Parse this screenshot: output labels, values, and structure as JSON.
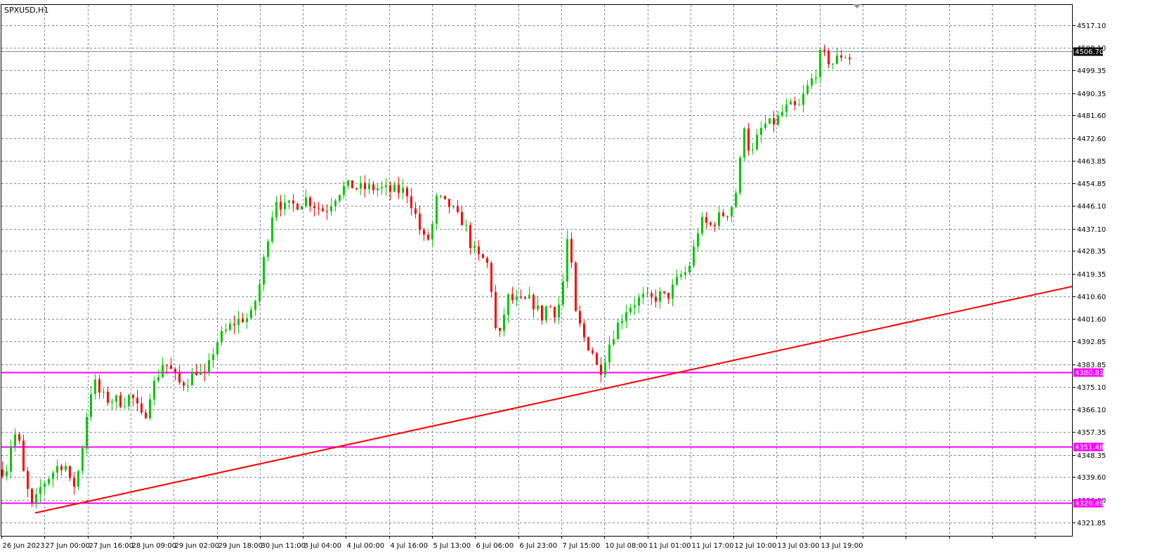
{
  "chart_data": {
    "type": "candlestick",
    "symbol_label": "SPXUSD,H1",
    "y_range": [
      4316.5,
      4525.0
    ],
    "y_ticks": [
      "4517.10",
      "4508.10",
      "4499.35",
      "4490.35",
      "4481.60",
      "4472.60",
      "4463.85",
      "4454.85",
      "4446.10",
      "4437.10",
      "4428.35",
      "4419.35",
      "4410.60",
      "4401.60",
      "4392.85",
      "4383.85",
      "4375.10",
      "4366.10",
      "4357.35",
      "4348.35",
      "4339.60",
      "4330.60",
      "4321.85"
    ],
    "x_ticks": [
      "26 Jun 2023",
      "27 Jun 00:00",
      "27 Jun 16:00",
      "28 Jun 09:00",
      "29 Jun 02:00",
      "29 Jun 18:00",
      "30 Jun 11:00",
      "3 Jul 04:00",
      "4 Jul 00:00",
      "4 Jul 16:00",
      "5 Jul 13:00",
      "6 Jul 06:00",
      "6 Jul 23:00",
      "7 Jul 15:00",
      "10 Jul 08:00",
      "11 Jul 01:00",
      "11 Jul 17:00",
      "12 Jul 10:00",
      "13 Jul 03:00",
      "13 Jul 19:00"
    ],
    "current_price": "4506.70",
    "horizontal_levels": [
      {
        "label": "4380.81",
        "value": 4380.81,
        "color": "#ff00ff"
      },
      {
        "label": "4351.48",
        "value": 4351.48,
        "color": "#ff00ff"
      },
      {
        "label": "4329.49",
        "value": 4329.49,
        "color": "#ff00ff"
      }
    ],
    "trendline": {
      "color": "#ff0000",
      "start_value": 4325.5,
      "end_value": 4414.5
    },
    "colors": {
      "bull": "#00c800",
      "bear": "#ff0000",
      "grid": "#778899",
      "price_line": "#778899"
    },
    "waypoints": [
      [
        0,
        4347
      ],
      [
        6,
        4338
      ],
      [
        14,
        4352
      ],
      [
        24,
        4358
      ],
      [
        34,
        4339
      ],
      [
        46,
        4327
      ],
      [
        58,
        4336
      ],
      [
        70,
        4340
      ],
      [
        82,
        4344
      ],
      [
        92,
        4345
      ],
      [
        100,
        4336
      ],
      [
        108,
        4337
      ],
      [
        116,
        4350
      ],
      [
        124,
        4366
      ],
      [
        132,
        4378
      ],
      [
        140,
        4373
      ],
      [
        150,
        4370
      ],
      [
        162,
        4370
      ],
      [
        175,
        4369
      ],
      [
        186,
        4372
      ],
      [
        196,
        4366
      ],
      [
        204,
        4361
      ],
      [
        212,
        4372
      ],
      [
        222,
        4378
      ],
      [
        232,
        4385
      ],
      [
        244,
        4381
      ],
      [
        256,
        4376
      ],
      [
        268,
        4378
      ],
      [
        280,
        4382
      ],
      [
        290,
        4378
      ],
      [
        298,
        4384
      ],
      [
        306,
        4392
      ],
      [
        318,
        4396
      ],
      [
        332,
        4400
      ],
      [
        344,
        4402
      ],
      [
        356,
        4402
      ],
      [
        362,
        4408
      ],
      [
        370,
        4416
      ],
      [
        378,
        4430
      ],
      [
        386,
        4442
      ],
      [
        394,
        4450
      ],
      [
        402,
        4445
      ],
      [
        412,
        4446
      ],
      [
        424,
        4447
      ],
      [
        436,
        4449
      ],
      [
        450,
        4446
      ],
      [
        462,
        4444
      ],
      [
        474,
        4449
      ],
      [
        486,
        4453
      ],
      [
        500,
        4454
      ],
      [
        512,
        4453
      ],
      [
        524,
        4453
      ],
      [
        538,
        4453
      ],
      [
        552,
        4452
      ],
      [
        566,
        4452
      ],
      [
        578,
        4452
      ],
      [
        588,
        4445
      ],
      [
        598,
        4436
      ],
      [
        606,
        4431
      ],
      [
        614,
        4437
      ],
      [
        622,
        4450
      ],
      [
        630,
        4447
      ],
      [
        640,
        4446
      ],
      [
        652,
        4441
      ],
      [
        660,
        4440
      ],
      [
        668,
        4432
      ],
      [
        678,
        4426
      ],
      [
        688,
        4425
      ],
      [
        696,
        4422
      ],
      [
        702,
        4405
      ],
      [
        708,
        4390
      ],
      [
        714,
        4400
      ],
      [
        722,
        4410
      ],
      [
        730,
        4409
      ],
      [
        740,
        4408
      ],
      [
        752,
        4409
      ],
      [
        762,
        4407
      ],
      [
        770,
        4402
      ],
      [
        780,
        4408
      ],
      [
        788,
        4404
      ],
      [
        796,
        4408
      ],
      [
        802,
        4418
      ],
      [
        806,
        4434
      ],
      [
        812,
        4425
      ],
      [
        818,
        4404
      ],
      [
        826,
        4398
      ],
      [
        834,
        4392
      ],
      [
        842,
        4390
      ],
      [
        852,
        4380
      ],
      [
        860,
        4386
      ],
      [
        868,
        4393
      ],
      [
        876,
        4398
      ],
      [
        884,
        4402
      ],
      [
        892,
        4406
      ],
      [
        902,
        4408
      ],
      [
        914,
        4410
      ],
      [
        926,
        4409
      ],
      [
        938,
        4411
      ],
      [
        948,
        4410
      ],
      [
        958,
        4414
      ],
      [
        966,
        4418
      ],
      [
        976,
        4420
      ],
      [
        984,
        4425
      ],
      [
        992,
        4436
      ],
      [
        1000,
        4440
      ],
      [
        1010,
        4438
      ],
      [
        1020,
        4441
      ],
      [
        1030,
        4443
      ],
      [
        1038,
        4444
      ],
      [
        1046,
        4450
      ],
      [
        1052,
        4460
      ],
      [
        1058,
        4480
      ],
      [
        1064,
        4470
      ],
      [
        1070,
        4466
      ],
      [
        1078,
        4473
      ],
      [
        1086,
        4478
      ],
      [
        1096,
        4478
      ],
      [
        1106,
        4480
      ],
      [
        1116,
        4484
      ],
      [
        1126,
        4485
      ],
      [
        1136,
        4484
      ],
      [
        1144,
        4490
      ],
      [
        1152,
        4494
      ],
      [
        1160,
        4498
      ],
      [
        1168,
        4506
      ],
      [
        1176,
        4504
      ],
      [
        1184,
        4502
      ],
      [
        1192,
        4504
      ],
      [
        1200,
        4506
      ],
      [
        1208,
        4504
      ],
      [
        1214,
        4506
      ]
    ]
  }
}
